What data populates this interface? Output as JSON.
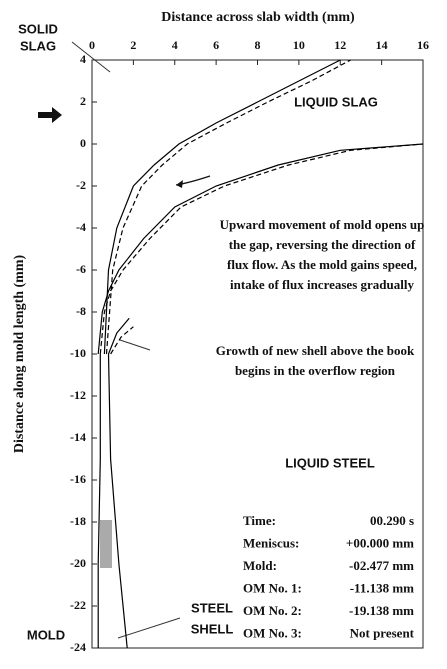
{
  "chart_data": {
    "type": "line",
    "xlabel": "Distance across slab width (mm)",
    "ylabel": "Distance along mold length (mm)",
    "xlim": [
      0,
      16
    ],
    "xticks": [
      0,
      2,
      4,
      6,
      8,
      10,
      12,
      14,
      16
    ],
    "ylim": [
      -24,
      4
    ],
    "yticks": [
      4,
      2,
      0,
      -2,
      -4,
      -6,
      -8,
      -10,
      -12,
      -14,
      -16,
      -18,
      -20,
      -22,
      -24
    ],
    "series": [
      {
        "color": "#000000",
        "dashed": false,
        "x": [
          0.6,
          0.8,
          1.2,
          2,
          3,
          4.2,
          6,
          8,
          10,
          12
        ],
        "values": [
          -10,
          -6,
          -4,
          -2,
          -1,
          0,
          1,
          2,
          3,
          4
        ]
      },
      {
        "color": "#000000",
        "dashed": true,
        "x": [
          0.7,
          1,
          1.5,
          2.4,
          3.4,
          4.6,
          6.5,
          8.5,
          10.6,
          12.5
        ],
        "values": [
          -10,
          -6,
          -4,
          -2,
          -1,
          0,
          1,
          2,
          3,
          4
        ]
      },
      {
        "color": "#000000",
        "dashed": false,
        "x": [
          0.3,
          0.5,
          0.8,
          1.3,
          2.5,
          4,
          6,
          9,
          12,
          16
        ],
        "values": [
          -10,
          -8,
          -7,
          -6,
          -4.5,
          -3,
          -2,
          -1,
          -0.3,
          0
        ]
      },
      {
        "color": "#000000",
        "dashed": true,
        "x": [
          0.4,
          0.6,
          0.9,
          1.5,
          2.8,
          4.3,
          6.4,
          9.5,
          12.5,
          16
        ],
        "values": [
          -10,
          -8,
          -7,
          -6,
          -4.5,
          -3,
          -2,
          -1,
          -0.3,
          0
        ]
      },
      {
        "color": "#000000",
        "dashed": false,
        "x": [
          0.4,
          0.4,
          0.3,
          0.3
        ],
        "values": [
          -10,
          -15,
          -20,
          -24
        ]
      },
      {
        "color": "#000000",
        "dashed": false,
        "x": [
          0.8,
          0.9,
          1.3,
          1.7
        ],
        "values": [
          -10,
          -15,
          -20,
          -24
        ]
      },
      {
        "color": "#000000",
        "dashed": false,
        "x": [
          0.8,
          1.2,
          1.8
        ],
        "values": [
          -10,
          -9,
          -8.3
        ]
      },
      {
        "color": "#000000",
        "dashed": true,
        "x": [
          0.9,
          1.4,
          2
        ],
        "values": [
          -10,
          -9.2,
          -8.7
        ]
      }
    ],
    "annotations": [
      {
        "lines": [
          "SOLID",
          "SLAG"
        ]
      },
      {
        "lines": [
          "LIQUID SLAG"
        ]
      },
      {
        "lines": [
          "Upward movement of mold opens up",
          "the gap, reversing the direction of",
          "flux flow. As the mold gains speed,",
          "intake of flux increases gradually"
        ]
      },
      {
        "lines": [
          "Growth of new shell above the book",
          "begins in the overflow region"
        ]
      },
      {
        "lines": [
          "LIQUID STEEL"
        ]
      },
      {
        "lines": [
          "STEEL",
          "SHELL"
        ]
      },
      {
        "lines": [
          "MOLD"
        ]
      }
    ],
    "info": [
      [
        "Time:",
        "00.290 s"
      ],
      [
        "Meniscus:",
        "+00.000 mm"
      ],
      [
        "Mold:",
        "-02.477 mm"
      ],
      [
        "OM No. 1:",
        "-11.138 mm"
      ],
      [
        "OM No. 2:",
        "-19.138 mm"
      ],
      [
        "OM No. 3:",
        "Not present"
      ]
    ]
  }
}
